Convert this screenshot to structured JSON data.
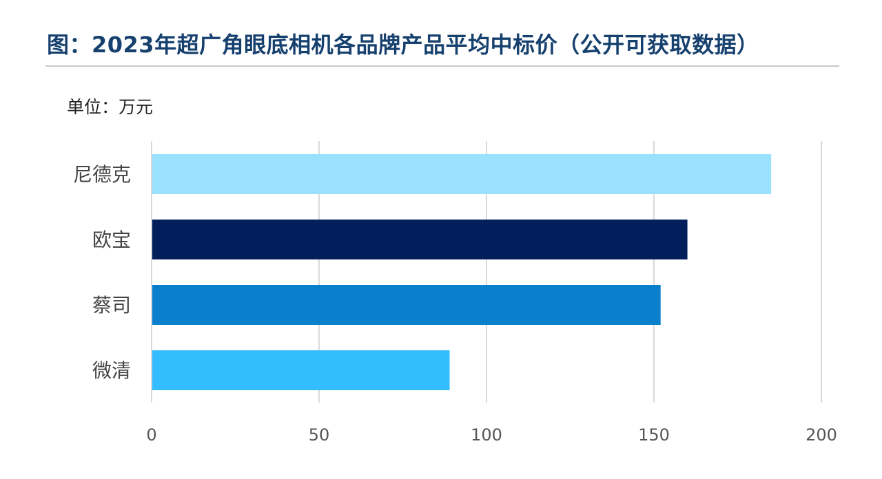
{
  "title": "图：2023年超广角眼底相机各品牌产品平均中标价（公开可获取数据）",
  "unit_label": "单位：万元",
  "chart_data": {
    "type": "bar",
    "orientation": "horizontal",
    "categories": [
      "尼德克",
      "欧宝",
      "蔡司",
      "微清"
    ],
    "values": [
      185,
      160,
      152,
      89
    ],
    "colors": [
      "#99e1ff",
      "#001f5b",
      "#0a80cc",
      "#33bdff"
    ],
    "xlim": [
      0,
      200
    ],
    "xticks": [
      0,
      50,
      100,
      150,
      200
    ],
    "grid": true,
    "legend": "none"
  }
}
